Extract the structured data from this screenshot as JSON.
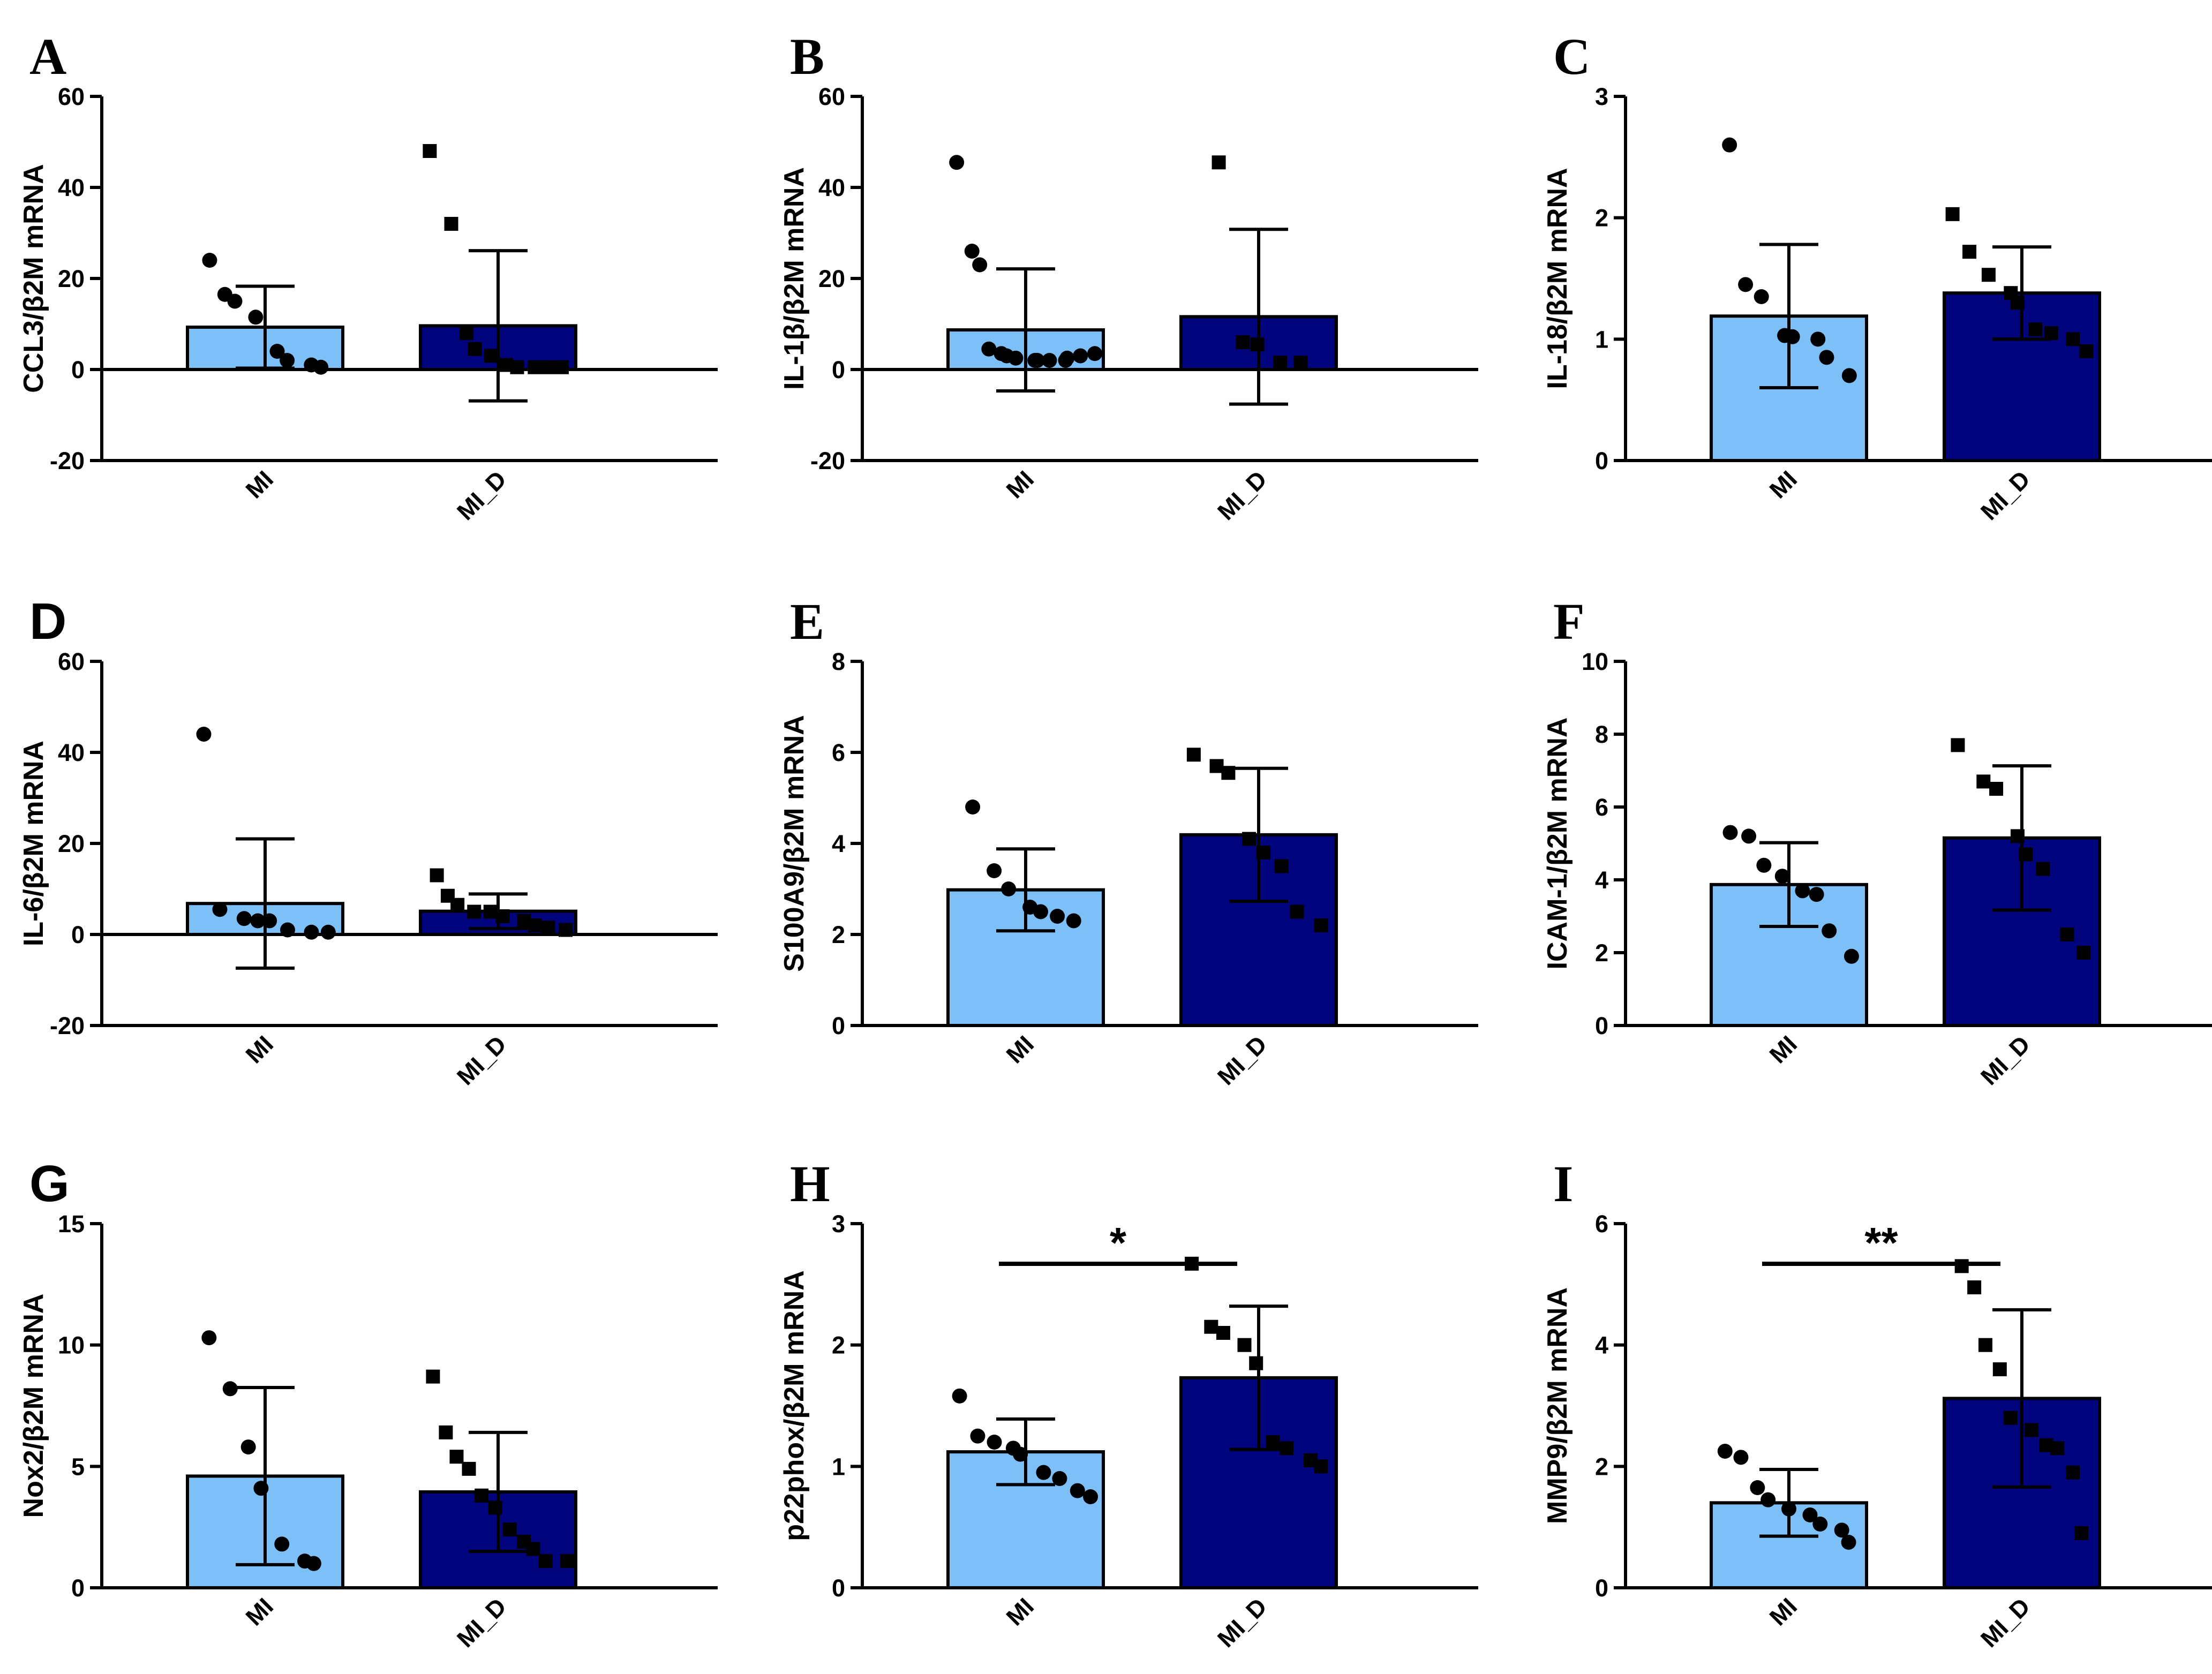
{
  "colors": {
    "MI": "#7dc0f8",
    "MI_D": "#02047d",
    "ink": "#000000"
  },
  "chart_data": [
    {
      "panel": "A",
      "type": "bar",
      "ylabel": "CCL3/β2M mRNA",
      "ylim": [
        -20,
        60
      ],
      "yticks": [
        "-20",
        "0",
        "20",
        "40",
        "60"
      ],
      "categories": [
        "MI",
        "MI_D"
      ],
      "mean": [
        9.3,
        9.6
      ],
      "sd": [
        9.0,
        16.5
      ],
      "points": [
        [
          24,
          16.5,
          15,
          11.5,
          4,
          2,
          1,
          0.5
        ],
        [
          48,
          32,
          8,
          4.5,
          3,
          1,
          0.5,
          0.5,
          0.5,
          0.5
        ]
      ],
      "significance": null
    },
    {
      "panel": "B",
      "type": "bar",
      "ylabel": "IL-1β/β2M mRNA",
      "ylim": [
        -20,
        60
      ],
      "yticks": [
        "-20",
        "0",
        "20",
        "40",
        "60"
      ],
      "categories": [
        "MI",
        "MI_D"
      ],
      "mean": [
        8.7,
        11.6
      ],
      "sd": [
        13.4,
        19.2
      ],
      "points": [
        [
          45.5,
          26,
          23,
          4.5,
          3.5,
          3,
          2.5,
          2,
          2,
          2,
          2,
          2.5,
          3,
          3.5
        ],
        [
          45.5,
          6,
          5.5,
          1.5,
          1.5
        ]
      ],
      "significance": null
    },
    {
      "panel": "C",
      "type": "bar",
      "ylabel": "IL-18/β2M mRNA",
      "ylim": [
        0,
        3
      ],
      "yticks": [
        "0",
        "1",
        "2",
        "3"
      ],
      "categories": [
        "MI",
        "MI_D"
      ],
      "mean": [
        1.19,
        1.38
      ],
      "sd": [
        0.59,
        0.38
      ],
      "points": [
        [
          2.6,
          1.45,
          1.35,
          1.03,
          1.02,
          1.0,
          0.85,
          0.7
        ],
        [
          2.03,
          1.72,
          1.53,
          1.38,
          1.3,
          1.08,
          1.05,
          1.0,
          0.9
        ]
      ],
      "significance": null
    },
    {
      "panel": "D",
      "type": "bar",
      "ylabel": "IL-6/β2M mRNA",
      "ylim": [
        -20,
        60
      ],
      "yticks": [
        "-20",
        "0",
        "20",
        "40",
        "60"
      ],
      "categories": [
        "MI",
        "MI_D"
      ],
      "mean": [
        6.8,
        5.1
      ],
      "sd": [
        14.2,
        3.8
      ],
      "points": [
        [
          44,
          5.5,
          3.5,
          3,
          3,
          1,
          0.5,
          0.5
        ],
        [
          13,
          8.5,
          6.5,
          5,
          5,
          4,
          3,
          2,
          1.5,
          1
        ]
      ],
      "significance": null
    },
    {
      "panel": "E",
      "type": "bar",
      "ylabel": "S100A9/β2M mRNA",
      "ylim": [
        0,
        8
      ],
      "yticks": [
        "0",
        "2",
        "4",
        "6",
        "8"
      ],
      "categories": [
        "MI",
        "MI_D"
      ],
      "mean": [
        2.98,
        4.19
      ],
      "sd": [
        0.9,
        1.46
      ],
      "points": [
        [
          4.8,
          3.4,
          3.0,
          2.6,
          2.5,
          2.4,
          2.3
        ],
        [
          5.95,
          5.7,
          5.55,
          4.1,
          3.8,
          3.5,
          2.5,
          2.2
        ]
      ],
      "significance": null
    },
    {
      "panel": "F",
      "type": "bar",
      "ylabel": "ICAM-1/β2M mRNA",
      "ylim": [
        0,
        10
      ],
      "yticks": [
        "0",
        "2",
        "4",
        "6",
        "8",
        "10"
      ],
      "categories": [
        "MI",
        "MI_D"
      ],
      "mean": [
        3.87,
        5.15
      ],
      "sd": [
        1.15,
        1.98
      ],
      "points": [
        [
          5.3,
          5.2,
          4.4,
          4.1,
          3.7,
          3.6,
          2.6,
          1.9
        ],
        [
          7.7,
          6.7,
          6.5,
          5.2,
          4.7,
          4.3,
          2.5,
          2.0
        ]
      ],
      "significance": null
    },
    {
      "panel": "G",
      "type": "bar",
      "ylabel": "Nox2/β2M mRNA",
      "ylim": [
        0,
        15
      ],
      "yticks": [
        "0",
        "5",
        "10",
        "15"
      ],
      "categories": [
        "MI",
        "MI_D"
      ],
      "mean": [
        4.6,
        3.95
      ],
      "sd": [
        3.65,
        2.45
      ],
      "points": [
        [
          10.3,
          8.2,
          5.8,
          4.1,
          1.8,
          1.1,
          1.0
        ],
        [
          8.7,
          6.4,
          5.4,
          4.9,
          3.8,
          3.3,
          2.4,
          1.9,
          1.6,
          1.1,
          1.1
        ]
      ],
      "significance": null
    },
    {
      "panel": "H",
      "type": "bar",
      "ylabel": "p22phox/β2M mRNA",
      "ylim": [
        0,
        3
      ],
      "yticks": [
        "0",
        "1",
        "2",
        "3"
      ],
      "categories": [
        "MI",
        "MI_D"
      ],
      "mean": [
        1.12,
        1.73
      ],
      "sd": [
        0.27,
        0.59
      ],
      "points": [
        [
          1.58,
          1.25,
          1.2,
          1.15,
          1.1,
          0.95,
          0.9,
          0.8,
          0.75
        ],
        [
          2.67,
          2.15,
          2.1,
          2.0,
          1.85,
          1.2,
          1.15,
          1.05,
          1.0
        ]
      ],
      "significance": "*"
    },
    {
      "panel": "I",
      "type": "bar",
      "ylabel": "MMP9/β2M mRNA",
      "ylim": [
        0,
        6
      ],
      "yticks": [
        "0",
        "2",
        "4",
        "6"
      ],
      "categories": [
        "MI",
        "MI_D"
      ],
      "mean": [
        1.4,
        3.12
      ],
      "sd": [
        0.55,
        1.46
      ],
      "points": [
        [
          2.25,
          2.15,
          1.65,
          1.45,
          1.3,
          1.2,
          1.05,
          0.95,
          0.75
        ],
        [
          5.3,
          4.95,
          4.0,
          3.6,
          2.8,
          2.6,
          2.35,
          2.3,
          1.9,
          0.9
        ]
      ],
      "significance": "**"
    }
  ]
}
